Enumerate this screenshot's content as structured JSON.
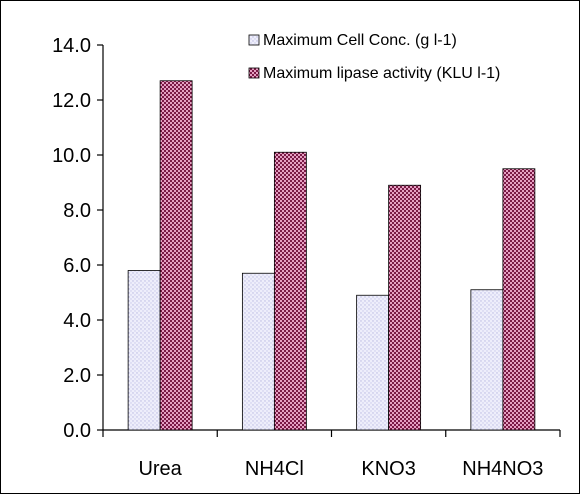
{
  "chart_data": {
    "type": "bar",
    "categories": [
      "Urea",
      "NH4Cl",
      "KNO3",
      "NH4NO3"
    ],
    "series": [
      {
        "name": "Maximum Cell Conc. (g l-1)",
        "values": [
          5.8,
          5.7,
          4.9,
          5.1
        ],
        "color": "#e4e4f6",
        "pattern": "dots-blue"
      },
      {
        "name": "Maximum lipase activity (KLU l-1)",
        "values": [
          12.7,
          10.1,
          8.9,
          9.5
        ],
        "color": "#b24a78",
        "pattern": "checker-magenta"
      }
    ],
    "title": "",
    "xlabel": "",
    "ylabel": "",
    "ylim": [
      0,
      14
    ],
    "yticks": [
      "0.0",
      "2.0",
      "4.0",
      "6.0",
      "8.0",
      "10.0",
      "12.0",
      "14.0"
    ],
    "grid": false,
    "legend_position": "top-right"
  }
}
